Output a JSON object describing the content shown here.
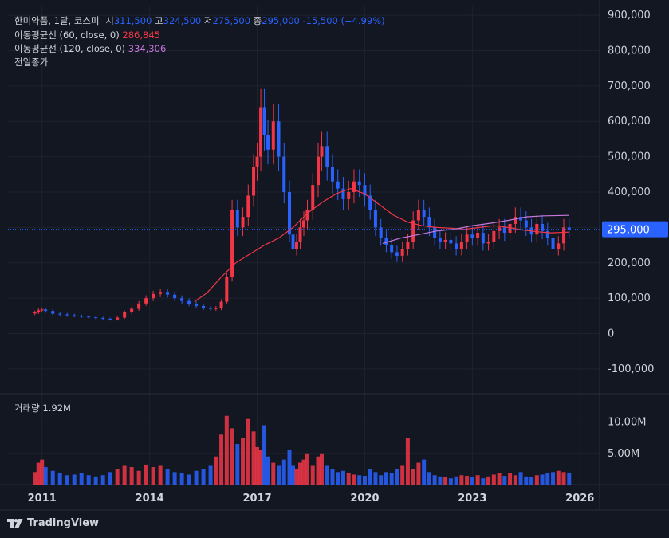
{
  "legend": {
    "symbol": "한미약품, 1달, 코스피",
    "o_label": "시",
    "o_value": "311,500",
    "h_label": "고",
    "h_value": "324,500",
    "l_label": "저",
    "l_value": "275,500",
    "c_label": "종",
    "c_value": "295,000",
    "change": "-15,500 (−4.99%)",
    "ma60_label": "이동평균선 (60, close, 0)",
    "ma60_value": "286,845",
    "ma120_label": "이동평균선 (120, close, 0)",
    "ma120_value": "334,306",
    "prev_close_label": "전일종가"
  },
  "volume_legend": {
    "label": "거래량",
    "value": "1.92M"
  },
  "brand": {
    "name": "TradingView",
    "icon": "tradingview-logo-icon"
  },
  "colors": {
    "up": "#f23645",
    "down": "#2962ff",
    "ma60": "#f23645",
    "ma120": "#c678dd",
    "price_line": "#2962ff",
    "background": "#131722"
  },
  "chart_data": {
    "type": "candlestick",
    "interval": "1M",
    "price_axis": {
      "ticks": [
        900000,
        800000,
        700000,
        600000,
        500000,
        400000,
        300000,
        200000,
        100000,
        0,
        -100000
      ],
      "tick_labels": [
        "900,000",
        "800,000",
        "700,000",
        "600,000",
        "500,000",
        "400,000",
        "300,000",
        "200,000",
        "100,000",
        "0",
        "-100,000"
      ],
      "range": [
        -170000,
        925000
      ]
    },
    "volume_axis": {
      "ticks": [
        10000000,
        5000000
      ],
      "tick_labels": [
        "10.00M",
        "5.00M"
      ],
      "range": [
        0,
        12500000
      ]
    },
    "time_axis": {
      "ticks": [
        2011,
        2014,
        2017,
        2020,
        2023,
        2026
      ],
      "tick_labels": [
        "2011",
        "2014",
        "2017",
        "2020",
        "2023",
        "2026"
      ],
      "range": [
        2010.05,
        2026.55
      ]
    },
    "last_price": {
      "value": 295000,
      "label": "295,000"
    },
    "close_series": [
      [
        2010.8,
        60000
      ],
      [
        2010.9,
        66000
      ],
      [
        2011.0,
        68000
      ],
      [
        2011.1,
        64000
      ],
      [
        2011.3,
        56000
      ],
      [
        2011.5,
        54000
      ],
      [
        2011.7,
        52000
      ],
      [
        2011.9,
        50000
      ],
      [
        2012.1,
        48000
      ],
      [
        2012.3,
        46000
      ],
      [
        2012.5,
        44000
      ],
      [
        2012.7,
        42000
      ],
      [
        2012.9,
        40000
      ],
      [
        2013.1,
        45000
      ],
      [
        2013.3,
        60000
      ],
      [
        2013.5,
        70000
      ],
      [
        2013.7,
        85000
      ],
      [
        2013.9,
        100000
      ],
      [
        2014.1,
        112000
      ],
      [
        2014.3,
        118000
      ],
      [
        2014.5,
        110000
      ],
      [
        2014.7,
        100000
      ],
      [
        2014.9,
        92000
      ],
      [
        2015.1,
        84000
      ],
      [
        2015.3,
        78000
      ],
      [
        2015.5,
        72000
      ],
      [
        2015.7,
        70000
      ],
      [
        2015.85,
        72000
      ],
      [
        2016.0,
        90000
      ],
      [
        2016.15,
        160000
      ],
      [
        2016.3,
        350000
      ],
      [
        2016.45,
        300000
      ],
      [
        2016.6,
        330000
      ],
      [
        2016.75,
        390000
      ],
      [
        2016.9,
        470000
      ],
      [
        2017.0,
        500000
      ],
      [
        2017.1,
        640000
      ],
      [
        2017.2,
        560000
      ],
      [
        2017.3,
        520000
      ],
      [
        2017.45,
        600000
      ],
      [
        2017.6,
        500000
      ],
      [
        2017.75,
        400000
      ],
      [
        2017.9,
        280000
      ],
      [
        2018.0,
        240000
      ],
      [
        2018.1,
        260000
      ],
      [
        2018.2,
        300000
      ],
      [
        2018.3,
        320000
      ],
      [
        2018.4,
        350000
      ],
      [
        2018.55,
        420000
      ],
      [
        2018.7,
        500000
      ],
      [
        2018.8,
        530000
      ],
      [
        2018.95,
        470000
      ],
      [
        2019.1,
        430000
      ],
      [
        2019.25,
        410000
      ],
      [
        2019.4,
        380000
      ],
      [
        2019.55,
        400000
      ],
      [
        2019.7,
        430000
      ],
      [
        2019.85,
        420000
      ],
      [
        2020.0,
        390000
      ],
      [
        2020.15,
        350000
      ],
      [
        2020.3,
        300000
      ],
      [
        2020.45,
        270000
      ],
      [
        2020.6,
        250000
      ],
      [
        2020.75,
        230000
      ],
      [
        2020.9,
        220000
      ],
      [
        2021.05,
        240000
      ],
      [
        2021.2,
        260000
      ],
      [
        2021.35,
        320000
      ],
      [
        2021.5,
        350000
      ],
      [
        2021.65,
        330000
      ],
      [
        2021.8,
        300000
      ],
      [
        2021.95,
        270000
      ],
      [
        2022.1,
        260000
      ],
      [
        2022.25,
        265000
      ],
      [
        2022.4,
        255000
      ],
      [
        2022.55,
        240000
      ],
      [
        2022.7,
        260000
      ],
      [
        2022.85,
        280000
      ],
      [
        2023.0,
        270000
      ],
      [
        2023.15,
        285000
      ],
      [
        2023.3,
        255000
      ],
      [
        2023.45,
        260000
      ],
      [
        2023.6,
        290000
      ],
      [
        2023.75,
        300000
      ],
      [
        2023.9,
        285000
      ],
      [
        2024.05,
        310000
      ],
      [
        2024.2,
        330000
      ],
      [
        2024.35,
        320000
      ],
      [
        2024.5,
        300000
      ],
      [
        2024.65,
        280000
      ],
      [
        2024.8,
        310000
      ],
      [
        2024.95,
        290000
      ],
      [
        2025.1,
        270000
      ],
      [
        2025.25,
        240000
      ],
      [
        2025.4,
        255000
      ],
      [
        2025.55,
        300000
      ],
      [
        2025.7,
        295000
      ]
    ],
    "ma60_series": [
      [
        2015.25,
        90000
      ],
      [
        2015.6,
        115000
      ],
      [
        2016.0,
        160000
      ],
      [
        2016.4,
        200000
      ],
      [
        2016.8,
        225000
      ],
      [
        2017.2,
        250000
      ],
      [
        2017.6,
        270000
      ],
      [
        2018.0,
        300000
      ],
      [
        2018.4,
        340000
      ],
      [
        2018.8,
        370000
      ],
      [
        2019.2,
        395000
      ],
      [
        2019.6,
        410000
      ],
      [
        2020.0,
        395000
      ],
      [
        2020.4,
        365000
      ],
      [
        2020.8,
        335000
      ],
      [
        2021.2,
        315000
      ],
      [
        2021.6,
        305000
      ],
      [
        2022.0,
        300000
      ],
      [
        2022.4,
        298000
      ],
      [
        2022.8,
        295000
      ],
      [
        2023.2,
        300000
      ],
      [
        2023.6,
        305000
      ],
      [
        2024.0,
        300000
      ],
      [
        2024.4,
        293000
      ],
      [
        2024.8,
        288000
      ],
      [
        2025.2,
        285000
      ],
      [
        2025.7,
        286845
      ]
    ],
    "ma120_series": [
      [
        2020.5,
        255000
      ],
      [
        2021.0,
        270000
      ],
      [
        2021.5,
        280000
      ],
      [
        2022.0,
        290000
      ],
      [
        2022.5,
        295000
      ],
      [
        2023.0,
        305000
      ],
      [
        2023.5,
        312000
      ],
      [
        2024.0,
        320000
      ],
      [
        2024.5,
        330000
      ],
      [
        2025.0,
        333000
      ],
      [
        2025.7,
        334306
      ]
    ],
    "volume_series": [
      [
        2010.8,
        2.0
      ],
      [
        2010.9,
        3.5
      ],
      [
        2011.0,
        4.0
      ],
      [
        2011.1,
        2.8
      ],
      [
        2011.3,
        2.2
      ],
      [
        2011.5,
        1.8
      ],
      [
        2011.7,
        1.5
      ],
      [
        2011.9,
        1.6
      ],
      [
        2012.1,
        1.8
      ],
      [
        2012.3,
        1.5
      ],
      [
        2012.5,
        1.3
      ],
      [
        2012.7,
        1.5
      ],
      [
        2012.9,
        2.0
      ],
      [
        2013.1,
        2.5
      ],
      [
        2013.3,
        3.0
      ],
      [
        2013.5,
        2.8
      ],
      [
        2013.7,
        2.2
      ],
      [
        2013.9,
        3.2
      ],
      [
        2014.1,
        2.8
      ],
      [
        2014.3,
        3.0
      ],
      [
        2014.5,
        2.5
      ],
      [
        2014.7,
        2.0
      ],
      [
        2014.9,
        1.8
      ],
      [
        2015.1,
        1.6
      ],
      [
        2015.3,
        2.2
      ],
      [
        2015.5,
        2.5
      ],
      [
        2015.7,
        3.0
      ],
      [
        2015.85,
        4.5
      ],
      [
        2016.0,
        8.0
      ],
      [
        2016.15,
        11.0
      ],
      [
        2016.3,
        9.0
      ],
      [
        2016.45,
        6.5
      ],
      [
        2016.6,
        7.5
      ],
      [
        2016.75,
        10.5
      ],
      [
        2016.9,
        8.5
      ],
      [
        2017.0,
        6.0
      ],
      [
        2017.1,
        5.5
      ],
      [
        2017.2,
        9.5
      ],
      [
        2017.3,
        4.5
      ],
      [
        2017.45,
        3.5
      ],
      [
        2017.6,
        3.0
      ],
      [
        2017.75,
        4.0
      ],
      [
        2017.9,
        5.5
      ],
      [
        2018.0,
        3.0
      ],
      [
        2018.1,
        2.5
      ],
      [
        2018.2,
        3.5
      ],
      [
        2018.3,
        4.0
      ],
      [
        2018.4,
        5.0
      ],
      [
        2018.55,
        3.0
      ],
      [
        2018.7,
        4.5
      ],
      [
        2018.8,
        5.0
      ],
      [
        2018.95,
        3.0
      ],
      [
        2019.1,
        2.5
      ],
      [
        2019.25,
        2.0
      ],
      [
        2019.4,
        2.2
      ],
      [
        2019.55,
        1.8
      ],
      [
        2019.7,
        1.6
      ],
      [
        2019.85,
        1.5
      ],
      [
        2020.0,
        1.4
      ],
      [
        2020.15,
        2.5
      ],
      [
        2020.3,
        2.0
      ],
      [
        2020.45,
        1.5
      ],
      [
        2020.6,
        2.0
      ],
      [
        2020.75,
        1.8
      ],
      [
        2020.9,
        2.5
      ],
      [
        2021.05,
        3.0
      ],
      [
        2021.2,
        7.5
      ],
      [
        2021.35,
        2.5
      ],
      [
        2021.5,
        3.5
      ],
      [
        2021.65,
        4.0
      ],
      [
        2021.8,
        2.0
      ],
      [
        2021.95,
        1.5
      ],
      [
        2022.1,
        1.3
      ],
      [
        2022.25,
        1.2
      ],
      [
        2022.4,
        1.0
      ],
      [
        2022.55,
        1.3
      ],
      [
        2022.7,
        1.5
      ],
      [
        2022.85,
        1.4
      ],
      [
        2023.0,
        1.2
      ],
      [
        2023.15,
        1.5
      ],
      [
        2023.3,
        1.0
      ],
      [
        2023.45,
        1.3
      ],
      [
        2023.6,
        1.6
      ],
      [
        2023.75,
        1.8
      ],
      [
        2023.9,
        1.4
      ],
      [
        2024.05,
        1.8
      ],
      [
        2024.2,
        1.5
      ],
      [
        2024.35,
        2.0
      ],
      [
        2024.5,
        1.3
      ],
      [
        2024.65,
        1.2
      ],
      [
        2024.8,
        1.5
      ],
      [
        2024.95,
        1.6
      ],
      [
        2025.1,
        1.8
      ],
      [
        2025.25,
        2.0
      ],
      [
        2025.4,
        2.2
      ],
      [
        2025.55,
        2.0
      ],
      [
        2025.7,
        1.92
      ]
    ]
  }
}
